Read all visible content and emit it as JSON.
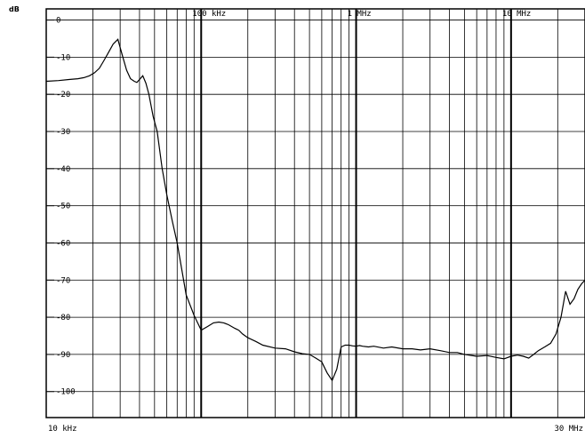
{
  "chart_data": {
    "type": "line",
    "title": "",
    "xlabel": "",
    "ylabel": "dB",
    "x_scale": "log",
    "xlim_hz": [
      10000,
      30000000
    ],
    "ylim": [
      -107,
      3
    ],
    "grid": true,
    "legend": "none",
    "y_ticks": [
      0,
      -10,
      -20,
      -30,
      -40,
      -50,
      -60,
      -70,
      -80,
      -90,
      -100
    ],
    "y_tick_labels": [
      "0",
      "-10",
      "-20",
      "-30",
      "-40",
      "-50",
      "-60",
      "-70",
      "-80",
      "-90",
      "-100"
    ],
    "x_tick_labels": [
      {
        "hz": 10000,
        "label": "10 kHz"
      },
      {
        "hz": 100000,
        "label": "100 kHz"
      },
      {
        "hz": 1000000,
        "label": "1 MHz"
      },
      {
        "hz": 10000000,
        "label": "10 MHz"
      },
      {
        "hz": 30000000,
        "label": "30 MHz"
      }
    ],
    "series": [
      {
        "x_hz": [
          10000,
          12000,
          14000,
          16000,
          17500,
          19000,
          20500,
          22000,
          23500,
          25000,
          27000,
          29000,
          31000,
          33000,
          35000,
          37000,
          38500,
          40000,
          42000,
          44000,
          46000,
          49000,
          52000,
          56000,
          60000,
          65000,
          70000,
          80000,
          90000,
          100000,
          110000,
          120000,
          130000,
          140000,
          150000,
          165000,
          175000,
          185000,
          200000,
          225000,
          250000,
          300000,
          350000,
          400000,
          450000,
          500000,
          550000,
          600000,
          650000,
          700000,
          750000,
          800000,
          850000,
          900000,
          950000,
          1000000,
          1050000,
          1100000,
          1200000,
          1300000,
          1500000,
          1700000,
          2000000,
          2300000,
          2600000,
          3000000,
          3500000,
          4000000,
          4500000,
          5000000,
          6000000,
          7000000,
          8000000,
          9000000,
          10000000,
          11000000,
          12000000,
          13000000,
          14000000,
          15000000,
          16500000,
          18000000,
          19500000,
          21000000,
          22500000,
          24000000,
          25500000,
          27000000,
          28500000,
          30000000
        ],
        "y_db": [
          -16.5,
          -16.3,
          -16.0,
          -15.8,
          -15.5,
          -15.0,
          -14.2,
          -13.0,
          -11.0,
          -9.0,
          -6.5,
          -5.2,
          -9.5,
          -13.5,
          -15.8,
          -16.5,
          -16.8,
          -16.0,
          -15.0,
          -17.0,
          -20.0,
          -26.0,
          -30.0,
          -40.0,
          -47.0,
          -54.0,
          -60.0,
          -74.0,
          -79.5,
          -83.5,
          -82.5,
          -81.5,
          -81.3,
          -81.5,
          -82.0,
          -83.0,
          -83.5,
          -84.5,
          -85.5,
          -86.5,
          -87.5,
          -88.3,
          -88.5,
          -89.3,
          -89.8,
          -90.0,
          -91.0,
          -92.0,
          -95.0,
          -97.0,
          -94.0,
          -88.0,
          -87.5,
          -87.5,
          -87.7,
          -87.8,
          -87.6,
          -87.8,
          -88.0,
          -87.8,
          -88.3,
          -88.0,
          -88.5,
          -88.5,
          -88.8,
          -88.5,
          -89.0,
          -89.5,
          -89.5,
          -90.0,
          -90.5,
          -90.3,
          -90.8,
          -91.2,
          -90.5,
          -90.2,
          -90.5,
          -91.0,
          -90.0,
          -89.0,
          -88.0,
          -87.0,
          -84.5,
          -80.0,
          -73.0,
          -76.5,
          -75.0,
          -72.5,
          -71.0,
          -70.0
        ]
      }
    ]
  }
}
